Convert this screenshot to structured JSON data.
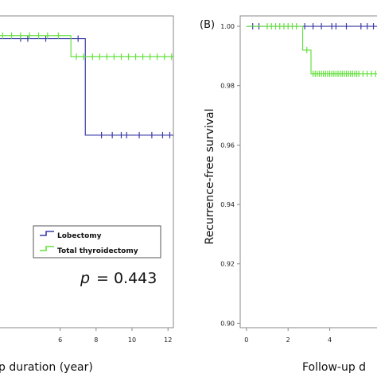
{
  "colors": {
    "lobectomy": "#3b3ba8",
    "total_thyroidectomy": "#66e040",
    "frame": "#888888",
    "background": "#ffffff"
  },
  "chart_data": [
    {
      "type": "line",
      "panel_label": "",
      "xlabel": "p duration (year)",
      "ylabel": "",
      "xlim": [
        0,
        12.3
      ],
      "ylim": [
        0.9,
        1.003
      ],
      "x_ticks": [
        "6",
        "8",
        "10",
        "12"
      ],
      "x_tick_values": [
        6,
        8,
        10,
        12
      ],
      "legend": {
        "placement": "lower-right",
        "entries": [
          "Lobectomy",
          "Total thyroidectomy"
        ]
      },
      "annotation": {
        "p_label": "p",
        "p_value": "= 0.443"
      },
      "series": [
        {
          "name": "Lobectomy",
          "step_x": [
            0,
            7.4,
            7.4,
            12.3
          ],
          "step_y": [
            0.9955,
            0.9955,
            0.9636,
            0.9636
          ],
          "censor_x": [
            3.8,
            4.2,
            5.2,
            7.0,
            8.3,
            8.9,
            9.4,
            9.7,
            10.4,
            11.1,
            11.7,
            12.1
          ]
        },
        {
          "name": "Total thyroidectomy",
          "step_x": [
            0,
            6.6,
            6.6,
            12.3
          ],
          "step_y": [
            0.9965,
            0.9965,
            0.9895,
            0.9895
          ],
          "censor_x": [
            0.3,
            0.8,
            1.3,
            1.8,
            2.3,
            2.8,
            3.3,
            3.8,
            4.3,
            4.8,
            5.3,
            5.9,
            6.9,
            7.3,
            7.8,
            8.2,
            8.6,
            9.0,
            9.4,
            9.8,
            10.2,
            10.6,
            11.0,
            11.4,
            11.8,
            12.2
          ]
        }
      ]
    },
    {
      "type": "line",
      "panel_label": "(B)",
      "xlabel": "Follow-up d",
      "ylabel": "Recurrence-free survival",
      "xlim": [
        -0.3,
        6.5
      ],
      "ylim": [
        0.8985,
        1.0035
      ],
      "y_ticks": [
        "1.00",
        "0.98",
        "0.96",
        "0.94",
        "0.92",
        "0.90"
      ],
      "y_tick_values": [
        1.0,
        0.98,
        0.96,
        0.94,
        0.92,
        0.9
      ],
      "x_ticks": [
        "0",
        "2",
        "4"
      ],
      "x_tick_values": [
        0,
        2,
        4
      ],
      "series": [
        {
          "name": "Lobectomy",
          "step_x": [
            0,
            6.5
          ],
          "step_y": [
            1.0,
            1.0
          ],
          "censor_x": [
            0.3,
            0.6,
            2.8,
            3.2,
            3.6,
            4.1,
            4.3,
            4.8,
            5.5,
            5.8,
            6.1
          ]
        },
        {
          "name": "Total thyroidectomy",
          "step_x": [
            0,
            2.7,
            2.7,
            3.1,
            3.1,
            6.5
          ],
          "step_y": [
            1.0,
            1.0,
            0.992,
            0.992,
            0.984,
            0.984
          ],
          "censor_x": [
            1.0,
            1.2,
            1.4,
            1.6,
            1.8,
            2.0,
            2.2,
            2.4,
            2.9,
            3.2,
            3.3,
            3.4,
            3.5,
            3.6,
            3.7,
            3.8,
            3.9,
            4.0,
            4.1,
            4.2,
            4.3,
            4.4,
            4.5,
            4.6,
            4.7,
            4.8,
            4.9,
            5.0,
            5.1,
            5.2,
            5.3,
            5.4,
            5.6,
            5.8,
            6.0,
            6.2
          ]
        }
      ]
    }
  ]
}
